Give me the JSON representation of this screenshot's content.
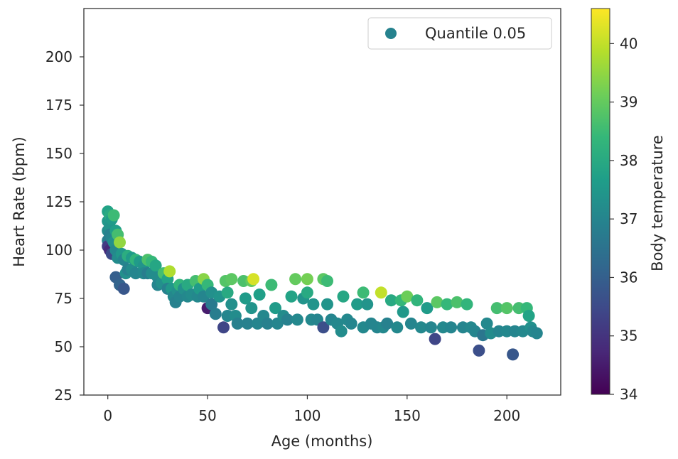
{
  "chart_data": {
    "type": "scatter",
    "title": "",
    "xlabel": "Age (months)",
    "ylabel": "Heart Rate (bpm)",
    "xlim": [
      -12,
      227
    ],
    "ylim": [
      25,
      225
    ],
    "xticks": [
      0,
      50,
      100,
      150,
      200
    ],
    "yticks": [
      25,
      50,
      75,
      100,
      125,
      150,
      175,
      200
    ],
    "grid": false,
    "legend": {
      "label": "Quantile 0.05",
      "position": "top-right",
      "color": "#26828e"
    },
    "colorbar": {
      "label": "Body temperature",
      "range": [
        34,
        40.6
      ],
      "ticks": [
        34,
        35,
        36,
        37,
        38,
        39,
        40
      ],
      "colormap": "viridis",
      "stops": [
        "#440154",
        "#482878",
        "#3e4989",
        "#31688e",
        "#26828e",
        "#1f9e89",
        "#35b779",
        "#6ece58",
        "#b5de2b",
        "#fde725"
      ]
    },
    "series": [
      {
        "name": "Quantile 0.05",
        "points": [
          {
            "x": 0,
            "y": 120,
            "c": 37.8
          },
          {
            "x": 0,
            "y": 115,
            "c": 37.5
          },
          {
            "x": 0,
            "y": 110,
            "c": 37.2
          },
          {
            "x": 0,
            "y": 105,
            "c": 36.8
          },
          {
            "x": 0,
            "y": 102,
            "c": 35.2
          },
          {
            "x": 1,
            "y": 118,
            "c": 38.0
          },
          {
            "x": 1,
            "y": 112,
            "c": 37.4
          },
          {
            "x": 1,
            "y": 108,
            "c": 36.9
          },
          {
            "x": 1,
            "y": 100,
            "c": 34.8
          },
          {
            "x": 2,
            "y": 116,
            "c": 37.6
          },
          {
            "x": 2,
            "y": 106,
            "c": 37.0
          },
          {
            "x": 2,
            "y": 98,
            "c": 35.5
          },
          {
            "x": 3,
            "y": 118,
            "c": 38.5
          },
          {
            "x": 3,
            "y": 104,
            "c": 37.3
          },
          {
            "x": 4,
            "y": 110,
            "c": 37.7
          },
          {
            "x": 4,
            "y": 100,
            "c": 37.1
          },
          {
            "x": 4,
            "y": 86,
            "c": 36.0
          },
          {
            "x": 5,
            "y": 108,
            "c": 38.6
          },
          {
            "x": 5,
            "y": 96,
            "c": 37.2
          },
          {
            "x": 6,
            "y": 104,
            "c": 39.5
          },
          {
            "x": 6,
            "y": 82,
            "c": 36.1
          },
          {
            "x": 7,
            "y": 98,
            "c": 37.5
          },
          {
            "x": 8,
            "y": 95,
            "c": 37.0
          },
          {
            "x": 8,
            "y": 80,
            "c": 35.8
          },
          {
            "x": 9,
            "y": 88,
            "c": 37.3
          },
          {
            "x": 10,
            "y": 97,
            "c": 38.1
          },
          {
            "x": 10,
            "y": 90,
            "c": 36.9
          },
          {
            "x": 12,
            "y": 96,
            "c": 37.6
          },
          {
            "x": 12,
            "y": 90,
            "c": 37.2
          },
          {
            "x": 14,
            "y": 95,
            "c": 38.3
          },
          {
            "x": 14,
            "y": 88,
            "c": 37.0
          },
          {
            "x": 16,
            "y": 94,
            "c": 37.6
          },
          {
            "x": 18,
            "y": 92,
            "c": 37.4
          },
          {
            "x": 18,
            "y": 88,
            "c": 37.1
          },
          {
            "x": 20,
            "y": 95,
            "c": 38.7
          },
          {
            "x": 20,
            "y": 88,
            "c": 36.8
          },
          {
            "x": 22,
            "y": 94,
            "c": 38.4
          },
          {
            "x": 22,
            "y": 88,
            "c": 37.2
          },
          {
            "x": 24,
            "y": 92,
            "c": 37.9
          },
          {
            "x": 25,
            "y": 86,
            "c": 37.2
          },
          {
            "x": 25,
            "y": 82,
            "c": 37.0
          },
          {
            "x": 27,
            "y": 83,
            "c": 37.3
          },
          {
            "x": 28,
            "y": 88,
            "c": 38.6
          },
          {
            "x": 30,
            "y": 85,
            "c": 37.8
          },
          {
            "x": 30,
            "y": 80,
            "c": 36.9
          },
          {
            "x": 31,
            "y": 89,
            "c": 39.8
          },
          {
            "x": 32,
            "y": 80,
            "c": 37.5
          },
          {
            "x": 33,
            "y": 76,
            "c": 37.1
          },
          {
            "x": 34,
            "y": 73,
            "c": 36.9
          },
          {
            "x": 35,
            "y": 79,
            "c": 37.3
          },
          {
            "x": 36,
            "y": 82,
            "c": 38.3
          },
          {
            "x": 36,
            "y": 76,
            "c": 37.0
          },
          {
            "x": 38,
            "y": 80,
            "c": 37.3
          },
          {
            "x": 40,
            "y": 76,
            "c": 37.1
          },
          {
            "x": 40,
            "y": 82,
            "c": 38.0
          },
          {
            "x": 42,
            "y": 77,
            "c": 37.2
          },
          {
            "x": 44,
            "y": 84,
            "c": 38.6
          },
          {
            "x": 45,
            "y": 76,
            "c": 37.1
          },
          {
            "x": 46,
            "y": 80,
            "c": 37.6
          },
          {
            "x": 48,
            "y": 85,
            "c": 39.4
          },
          {
            "x": 48,
            "y": 76,
            "c": 37.0
          },
          {
            "x": 50,
            "y": 82,
            "c": 38.4
          },
          {
            "x": 50,
            "y": 70,
            "c": 34.5
          },
          {
            "x": 52,
            "y": 78,
            "c": 37.3
          },
          {
            "x": 52,
            "y": 72,
            "c": 36.7
          },
          {
            "x": 54,
            "y": 67,
            "c": 36.8
          },
          {
            "x": 56,
            "y": 76,
            "c": 37.4
          },
          {
            "x": 58,
            "y": 60,
            "c": 35.4
          },
          {
            "x": 59,
            "y": 84,
            "c": 38.8
          },
          {
            "x": 60,
            "y": 78,
            "c": 38.0
          },
          {
            "x": 60,
            "y": 66,
            "c": 37.0
          },
          {
            "x": 62,
            "y": 85,
            "c": 38.9
          },
          {
            "x": 62,
            "y": 72,
            "c": 37.3
          },
          {
            "x": 64,
            "y": 66,
            "c": 37.2
          },
          {
            "x": 65,
            "y": 62,
            "c": 36.9
          },
          {
            "x": 68,
            "y": 84,
            "c": 38.7
          },
          {
            "x": 69,
            "y": 75,
            "c": 37.6
          },
          {
            "x": 70,
            "y": 62,
            "c": 36.9
          },
          {
            "x": 72,
            "y": 84,
            "c": 39.0
          },
          {
            "x": 72,
            "y": 70,
            "c": 37.4
          },
          {
            "x": 73,
            "y": 85,
            "c": 40.2
          },
          {
            "x": 75,
            "y": 62,
            "c": 37.0
          },
          {
            "x": 76,
            "y": 77,
            "c": 37.7
          },
          {
            "x": 78,
            "y": 66,
            "c": 37.1
          },
          {
            "x": 80,
            "y": 62,
            "c": 36.9
          },
          {
            "x": 82,
            "y": 82,
            "c": 38.5
          },
          {
            "x": 84,
            "y": 70,
            "c": 37.6
          },
          {
            "x": 85,
            "y": 62,
            "c": 37.0
          },
          {
            "x": 88,
            "y": 66,
            "c": 37.2
          },
          {
            "x": 90,
            "y": 64,
            "c": 36.9
          },
          {
            "x": 92,
            "y": 76,
            "c": 37.8
          },
          {
            "x": 94,
            "y": 85,
            "c": 39.0
          },
          {
            "x": 95,
            "y": 64,
            "c": 37.1
          },
          {
            "x": 98,
            "y": 75,
            "c": 37.4
          },
          {
            "x": 100,
            "y": 85,
            "c": 39.2
          },
          {
            "x": 100,
            "y": 78,
            "c": 38.0
          },
          {
            "x": 102,
            "y": 64,
            "c": 37.1
          },
          {
            "x": 103,
            "y": 72,
            "c": 37.4
          },
          {
            "x": 105,
            "y": 64,
            "c": 37.0
          },
          {
            "x": 108,
            "y": 85,
            "c": 38.9
          },
          {
            "x": 108,
            "y": 60,
            "c": 35.6
          },
          {
            "x": 110,
            "y": 84,
            "c": 38.5
          },
          {
            "x": 110,
            "y": 72,
            "c": 37.4
          },
          {
            "x": 112,
            "y": 64,
            "c": 37.0
          },
          {
            "x": 115,
            "y": 62,
            "c": 37.1
          },
          {
            "x": 117,
            "y": 58,
            "c": 37.2
          },
          {
            "x": 118,
            "y": 76,
            "c": 37.9
          },
          {
            "x": 120,
            "y": 64,
            "c": 37.1
          },
          {
            "x": 122,
            "y": 62,
            "c": 37.0
          },
          {
            "x": 125,
            "y": 72,
            "c": 37.6
          },
          {
            "x": 128,
            "y": 78,
            "c": 38.5
          },
          {
            "x": 128,
            "y": 60,
            "c": 37.1
          },
          {
            "x": 130,
            "y": 72,
            "c": 37.4
          },
          {
            "x": 132,
            "y": 62,
            "c": 37.0
          },
          {
            "x": 135,
            "y": 60,
            "c": 37.0
          },
          {
            "x": 137,
            "y": 78,
            "c": 40.0
          },
          {
            "x": 138,
            "y": 60,
            "c": 37.1
          },
          {
            "x": 140,
            "y": 62,
            "c": 36.9
          },
          {
            "x": 142,
            "y": 74,
            "c": 38.0
          },
          {
            "x": 145,
            "y": 60,
            "c": 37.1
          },
          {
            "x": 147,
            "y": 74,
            "c": 38.4
          },
          {
            "x": 148,
            "y": 68,
            "c": 37.5
          },
          {
            "x": 150,
            "y": 76,
            "c": 39.1
          },
          {
            "x": 152,
            "y": 62,
            "c": 37.0
          },
          {
            "x": 155,
            "y": 74,
            "c": 38.3
          },
          {
            "x": 157,
            "y": 60,
            "c": 37.1
          },
          {
            "x": 160,
            "y": 70,
            "c": 37.6
          },
          {
            "x": 162,
            "y": 60,
            "c": 37.0
          },
          {
            "x": 164,
            "y": 54,
            "c": 35.4
          },
          {
            "x": 165,
            "y": 73,
            "c": 38.9
          },
          {
            "x": 168,
            "y": 60,
            "c": 37.1
          },
          {
            "x": 170,
            "y": 72,
            "c": 38.4
          },
          {
            "x": 172,
            "y": 60,
            "c": 37.0
          },
          {
            "x": 175,
            "y": 73,
            "c": 38.7
          },
          {
            "x": 178,
            "y": 60,
            "c": 37.0
          },
          {
            "x": 180,
            "y": 72,
            "c": 38.3
          },
          {
            "x": 182,
            "y": 60,
            "c": 37.1
          },
          {
            "x": 184,
            "y": 58,
            "c": 37.0
          },
          {
            "x": 186,
            "y": 48,
            "c": 35.6
          },
          {
            "x": 188,
            "y": 56,
            "c": 36.6
          },
          {
            "x": 190,
            "y": 62,
            "c": 37.1
          },
          {
            "x": 192,
            "y": 57,
            "c": 37.2
          },
          {
            "x": 195,
            "y": 70,
            "c": 38.6
          },
          {
            "x": 196,
            "y": 58,
            "c": 37.0
          },
          {
            "x": 200,
            "y": 70,
            "c": 38.8
          },
          {
            "x": 200,
            "y": 58,
            "c": 37.1
          },
          {
            "x": 203,
            "y": 46,
            "c": 35.8
          },
          {
            "x": 204,
            "y": 58,
            "c": 37.0
          },
          {
            "x": 206,
            "y": 70,
            "c": 38.6
          },
          {
            "x": 208,
            "y": 58,
            "c": 37.1
          },
          {
            "x": 210,
            "y": 70,
            "c": 38.4
          },
          {
            "x": 211,
            "y": 66,
            "c": 37.8
          },
          {
            "x": 212,
            "y": 60,
            "c": 37.3
          },
          {
            "x": 213,
            "y": 58,
            "c": 37.1
          },
          {
            "x": 215,
            "y": 57,
            "c": 37.0
          }
        ]
      }
    ]
  }
}
